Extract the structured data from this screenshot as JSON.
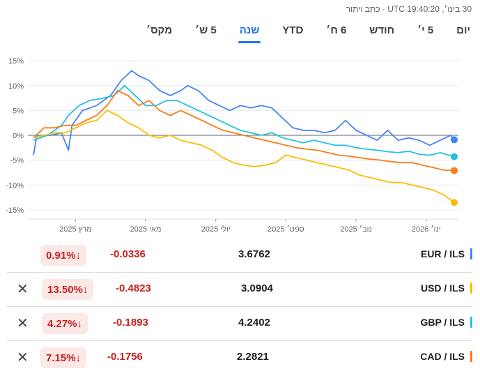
{
  "header": {
    "timestamp": "30 בינו׳, UTC 19:40:20 · כתב ויתור"
  },
  "ranges": [
    "יום",
    "5 י׳",
    "חודש",
    "6 ח׳",
    "YTD",
    "שנה",
    "5 ש׳",
    "מקס׳"
  ],
  "active_range": "שנה",
  "rows": [
    {
      "pair": "EUR / ILS",
      "price": "3.6762",
      "change": "-0.0336",
      "percent": "0.91%",
      "arrow": "↓",
      "color": "#4285f4",
      "removable": false
    },
    {
      "pair": "USD / ILS",
      "price": "3.0904",
      "change": "-0.4823",
      "percent": "13.50%",
      "arrow": "↓",
      "color": "#fbbc04",
      "removable": true
    },
    {
      "pair": "GBP / ILS",
      "price": "4.2402",
      "change": "-0.1893",
      "percent": "4.27%",
      "arrow": "↓",
      "color": "#24c1e0",
      "removable": true
    },
    {
      "pair": "CAD / ILS",
      "price": "2.2821",
      "change": "-0.1756",
      "percent": "7.15%",
      "arrow": "↓",
      "color": "#fa7b17",
      "removable": true
    }
  ],
  "close_icon": "close-icon",
  "chart_data": {
    "type": "line",
    "ylabel": "",
    "y_ticks": [
      15,
      10,
      5,
      0,
      -5,
      -10,
      -15
    ],
    "y_tick_labels": [
      "15%",
      "10%",
      "5%",
      "0%",
      "-5%",
      "-10%",
      "-15%"
    ],
    "ylim": [
      -16,
      16
    ],
    "x_ticks": [
      "מרץ 2025",
      "מאי 2025",
      "יולי 2025",
      "ספט׳ 2025",
      "נוב׳ 2025",
      "ינו׳ 2026"
    ],
    "x_tick_months": [
      1.2,
      3.2,
      5.2,
      7.2,
      9.2,
      11.2
    ],
    "xlim": [
      0,
      12
    ],
    "grid": true,
    "baseline": 0,
    "series": [
      {
        "name": "EUR / ILS",
        "color": "#4285f4",
        "points": [
          [
            0,
            -4
          ],
          [
            0.1,
            0
          ],
          [
            0.5,
            0
          ],
          [
            0.8,
            0.5
          ],
          [
            1.0,
            -3
          ],
          [
            1.1,
            2
          ],
          [
            1.4,
            5
          ],
          [
            1.8,
            6
          ],
          [
            2.2,
            8
          ],
          [
            2.5,
            11
          ],
          [
            2.8,
            13
          ],
          [
            3.0,
            12
          ],
          [
            3.3,
            11
          ],
          [
            3.6,
            9
          ],
          [
            3.9,
            8
          ],
          [
            4.2,
            9
          ],
          [
            4.4,
            10
          ],
          [
            4.7,
            9
          ],
          [
            5.0,
            7
          ],
          [
            5.3,
            6
          ],
          [
            5.6,
            5
          ],
          [
            5.9,
            6
          ],
          [
            6.2,
            5.5
          ],
          [
            6.5,
            6
          ],
          [
            6.8,
            5.5
          ],
          [
            7.1,
            3.5
          ],
          [
            7.4,
            1.5
          ],
          [
            7.7,
            1
          ],
          [
            8.0,
            1
          ],
          [
            8.3,
            0.5
          ],
          [
            8.6,
            1
          ],
          [
            8.9,
            3
          ],
          [
            9.2,
            1
          ],
          [
            9.5,
            0
          ],
          [
            9.8,
            -1
          ],
          [
            10.1,
            1
          ],
          [
            10.4,
            -1
          ],
          [
            10.7,
            -0.5
          ],
          [
            11.0,
            -1
          ],
          [
            11.3,
            -2
          ],
          [
            11.6,
            -1
          ],
          [
            11.9,
            0
          ],
          [
            12.0,
            -0.9
          ]
        ]
      },
      {
        "name": "GBP / ILS",
        "color": "#24c1e0",
        "points": [
          [
            0,
            -1
          ],
          [
            0.4,
            0
          ],
          [
            0.8,
            2
          ],
          [
            1.0,
            4
          ],
          [
            1.3,
            6
          ],
          [
            1.6,
            7
          ],
          [
            2.0,
            7.5
          ],
          [
            2.3,
            8
          ],
          [
            2.6,
            10
          ],
          [
            2.9,
            8
          ],
          [
            3.2,
            6
          ],
          [
            3.5,
            6
          ],
          [
            3.8,
            7
          ],
          [
            4.1,
            7
          ],
          [
            4.4,
            6
          ],
          [
            4.7,
            5
          ],
          [
            5.0,
            4
          ],
          [
            5.3,
            3
          ],
          [
            5.6,
            2
          ],
          [
            5.9,
            1
          ],
          [
            6.2,
            0.5
          ],
          [
            6.5,
            0
          ],
          [
            6.8,
            0.5
          ],
          [
            7.1,
            -0.5
          ],
          [
            7.4,
            -1
          ],
          [
            7.7,
            -1.5
          ],
          [
            8.0,
            -1
          ],
          [
            8.3,
            -1.5
          ],
          [
            8.6,
            -2
          ],
          [
            8.9,
            -2
          ],
          [
            9.2,
            -2.5
          ],
          [
            9.5,
            -2.8
          ],
          [
            9.8,
            -3
          ],
          [
            10.1,
            -3.3
          ],
          [
            10.4,
            -3.5
          ],
          [
            10.7,
            -3.2
          ],
          [
            11.0,
            -3.8
          ],
          [
            11.3,
            -4
          ],
          [
            11.6,
            -3.5
          ],
          [
            12.0,
            -4.3
          ]
        ]
      },
      {
        "name": "CAD / ILS",
        "color": "#fa7b17",
        "points": [
          [
            0,
            -0.5
          ],
          [
            0.3,
            1.5
          ],
          [
            0.6,
            1.5
          ],
          [
            0.9,
            2
          ],
          [
            1.2,
            2
          ],
          [
            1.5,
            3
          ],
          [
            1.8,
            4
          ],
          [
            2.1,
            6
          ],
          [
            2.4,
            9
          ],
          [
            2.7,
            8
          ],
          [
            3.0,
            6
          ],
          [
            3.3,
            7
          ],
          [
            3.6,
            5
          ],
          [
            3.9,
            4
          ],
          [
            4.2,
            5
          ],
          [
            4.5,
            4
          ],
          [
            4.8,
            3
          ],
          [
            5.1,
            2
          ],
          [
            5.4,
            1
          ],
          [
            5.7,
            0.5
          ],
          [
            6.0,
            0
          ],
          [
            6.3,
            -0.5
          ],
          [
            6.6,
            -1
          ],
          [
            6.9,
            -1.5
          ],
          [
            7.2,
            -2
          ],
          [
            7.5,
            -2.5
          ],
          [
            7.8,
            -2.8
          ],
          [
            8.1,
            -3
          ],
          [
            8.4,
            -3.5
          ],
          [
            8.7,
            -4
          ],
          [
            9.0,
            -4.2
          ],
          [
            9.3,
            -4.5
          ],
          [
            9.6,
            -4.8
          ],
          [
            9.9,
            -5
          ],
          [
            10.2,
            -5.3
          ],
          [
            10.5,
            -5.5
          ],
          [
            10.8,
            -5.5
          ],
          [
            11.1,
            -6
          ],
          [
            11.4,
            -6.5
          ],
          [
            11.7,
            -7
          ],
          [
            12.0,
            -7.1
          ]
        ]
      },
      {
        "name": "USD / ILS",
        "color": "#fbbc04",
        "points": [
          [
            0,
            -0.5
          ],
          [
            0.3,
            0
          ],
          [
            0.6,
            0.5
          ],
          [
            0.9,
            0.5
          ],
          [
            1.2,
            1.5
          ],
          [
            1.5,
            2.5
          ],
          [
            1.8,
            3
          ],
          [
            2.1,
            5
          ],
          [
            2.4,
            4
          ],
          [
            2.7,
            2.5
          ],
          [
            3.0,
            1.5
          ],
          [
            3.3,
            0
          ],
          [
            3.6,
            -0.5
          ],
          [
            3.9,
            0
          ],
          [
            4.2,
            -1
          ],
          [
            4.5,
            -1.5
          ],
          [
            4.8,
            -2
          ],
          [
            5.1,
            -3
          ],
          [
            5.4,
            -4.5
          ],
          [
            5.7,
            -5.5
          ],
          [
            6.0,
            -6
          ],
          [
            6.3,
            -6.3
          ],
          [
            6.6,
            -6
          ],
          [
            6.9,
            -5.5
          ],
          [
            7.2,
            -4
          ],
          [
            7.5,
            -4.5
          ],
          [
            7.8,
            -5
          ],
          [
            8.1,
            -5.5
          ],
          [
            8.4,
            -6
          ],
          [
            8.7,
            -6.5
          ],
          [
            9.0,
            -7
          ],
          [
            9.3,
            -8
          ],
          [
            9.6,
            -8.5
          ],
          [
            9.9,
            -9
          ],
          [
            10.2,
            -9.5
          ],
          [
            10.5,
            -9.5
          ],
          [
            10.8,
            -10
          ],
          [
            11.1,
            -10.5
          ],
          [
            11.4,
            -11
          ],
          [
            11.7,
            -12
          ],
          [
            12.0,
            -13.5
          ]
        ]
      }
    ]
  }
}
